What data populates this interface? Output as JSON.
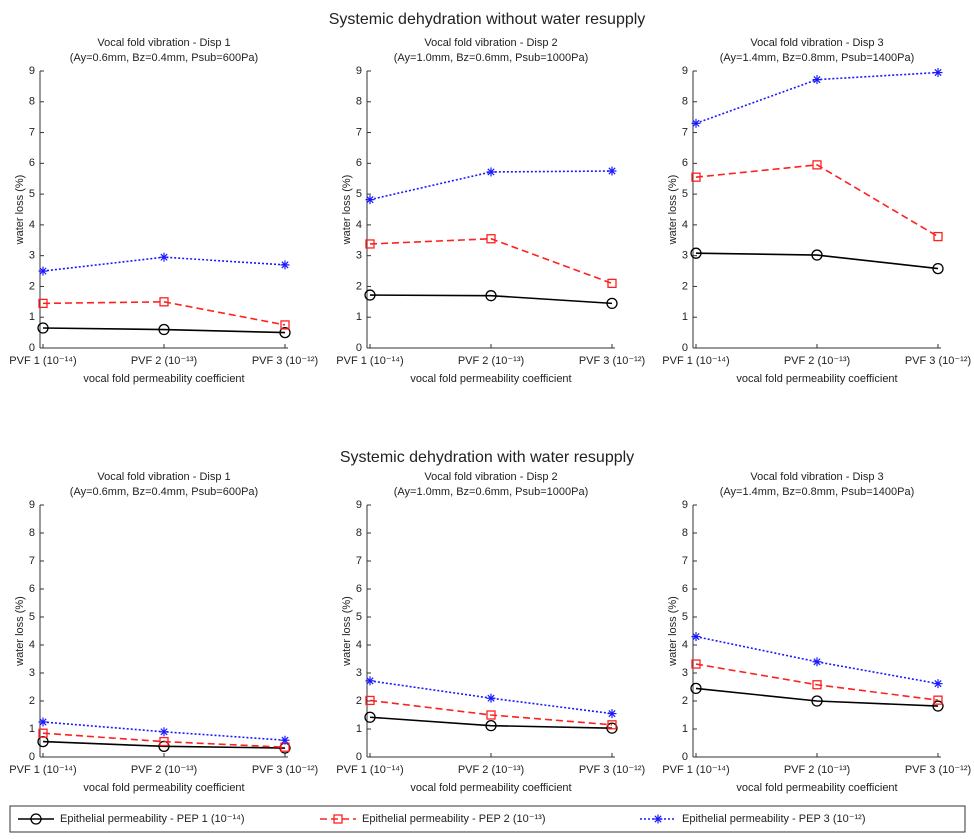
{
  "section_titles": [
    "Systemic dehydration without water resupply",
    "Systemic dehydration with water resupply"
  ],
  "chart_data": [
    {
      "type": "line",
      "title": "Vocal fold vibration - Disp 1",
      "subtitle": "(Ay=0.6mm, Bz=0.4mm, Psub=600Pa)",
      "x_label": "vocal fold permeability coefficient",
      "y_label": "water loss (%)",
      "categories": [
        "PVF 1 (10⁻¹⁴)",
        "PVF 2 (10⁻¹³)",
        "PVF 3 (10⁻¹²)"
      ],
      "ylim": [
        0,
        9
      ],
      "yticks": [
        0,
        1,
        2,
        3,
        4,
        5,
        6,
        7,
        8,
        9
      ],
      "series": [
        {
          "name": "Epithelial permeability - PEP 1 (10⁻¹⁴)",
          "color": "#000000",
          "marker": "circle",
          "dash": "solid",
          "values": [
            0.65,
            0.6,
            0.5
          ]
        },
        {
          "name": "Epithelial permeability - PEP 2 (10⁻¹³)",
          "color": "#ff2020",
          "marker": "square",
          "dash": "dashed",
          "values": [
            1.45,
            1.5,
            0.75
          ]
        },
        {
          "name": "Epithelial permeability - PEP 3 (10⁻¹²)",
          "color": "#1a1aff",
          "marker": "asterisk",
          "dash": "dotted",
          "values": [
            2.5,
            2.95,
            2.7
          ]
        }
      ]
    },
    {
      "type": "line",
      "title": "Vocal fold vibration - Disp 2",
      "subtitle": "(Ay=1.0mm, Bz=0.6mm, Psub=1000Pa)",
      "x_label": "vocal fold permeability coefficient",
      "y_label": "water loss (%)",
      "categories": [
        "PVF 1 (10⁻¹⁴)",
        "PVF 2 (10⁻¹³)",
        "PVF 3 (10⁻¹²)"
      ],
      "ylim": [
        0,
        9
      ],
      "yticks": [
        0,
        1,
        2,
        3,
        4,
        5,
        6,
        7,
        8,
        9
      ],
      "series": [
        {
          "name": "Epithelial permeability - PEP 1 (10⁻¹⁴)",
          "color": "#000000",
          "marker": "circle",
          "dash": "solid",
          "values": [
            1.72,
            1.7,
            1.45
          ]
        },
        {
          "name": "Epithelial permeability - PEP 2 (10⁻¹³)",
          "color": "#ff2020",
          "marker": "square",
          "dash": "dashed",
          "values": [
            3.38,
            3.55,
            2.1
          ]
        },
        {
          "name": "Epithelial permeability - PEP 3 (10⁻¹²)",
          "color": "#1a1aff",
          "marker": "asterisk",
          "dash": "dotted",
          "values": [
            4.82,
            5.72,
            5.75
          ]
        }
      ]
    },
    {
      "type": "line",
      "title": "Vocal fold vibration - Disp 3",
      "subtitle": "(Ay=1.4mm, Bz=0.8mm, Psub=1400Pa)",
      "x_label": "vocal fold permeability coefficient",
      "y_label": "water loss (%)",
      "categories": [
        "PVF 1 (10⁻¹⁴)",
        "PVF 2 (10⁻¹³)",
        "PVF 3 (10⁻¹²)"
      ],
      "ylim": [
        0,
        9
      ],
      "yticks": [
        0,
        1,
        2,
        3,
        4,
        5,
        6,
        7,
        8,
        9
      ],
      "series": [
        {
          "name": "Epithelial permeability - PEP 1 (10⁻¹⁴)",
          "color": "#000000",
          "marker": "circle",
          "dash": "solid",
          "values": [
            3.08,
            3.02,
            2.58
          ]
        },
        {
          "name": "Epithelial permeability - PEP 2 (10⁻¹³)",
          "color": "#ff2020",
          "marker": "square",
          "dash": "dashed",
          "values": [
            5.55,
            5.95,
            3.62
          ]
        },
        {
          "name": "Epithelial permeability - PEP 3 (10⁻¹²)",
          "color": "#1a1aff",
          "marker": "asterisk",
          "dash": "dotted",
          "values": [
            7.3,
            8.72,
            8.95
          ]
        }
      ]
    },
    {
      "type": "line",
      "title": "Vocal fold vibration - Disp 1",
      "subtitle": "(Ay=0.6mm, Bz=0.4mm, Psub=600Pa)",
      "x_label": "vocal fold permeability coefficient",
      "y_label": "water loss (%)",
      "categories": [
        "PVF 1 (10⁻¹⁴)",
        "PVF 2 (10⁻¹³)",
        "PVF 3 (10⁻¹²)"
      ],
      "ylim": [
        0,
        9
      ],
      "yticks": [
        0,
        1,
        2,
        3,
        4,
        5,
        6,
        7,
        8,
        9
      ],
      "series": [
        {
          "name": "Epithelial permeability - PEP 1 (10⁻¹⁴)",
          "color": "#000000",
          "marker": "circle",
          "dash": "solid",
          "values": [
            0.55,
            0.38,
            0.32
          ]
        },
        {
          "name": "Epithelial permeability - PEP 2 (10⁻¹³)",
          "color": "#ff2020",
          "marker": "square",
          "dash": "dashed",
          "values": [
            0.85,
            0.55,
            0.35
          ]
        },
        {
          "name": "Epithelial permeability - PEP 3 (10⁻¹²)",
          "color": "#1a1aff",
          "marker": "asterisk",
          "dash": "dotted",
          "values": [
            1.25,
            0.9,
            0.6
          ]
        }
      ]
    },
    {
      "type": "line",
      "title": "Vocal fold vibration - Disp 2",
      "subtitle": "(Ay=1.0mm, Bz=0.6mm, Psub=1000Pa)",
      "x_label": "vocal fold permeability coefficient",
      "y_label": "water loss (%)",
      "categories": [
        "PVF 1 (10⁻¹⁴)",
        "PVF 2 (10⁻¹³)",
        "PVF 3 (10⁻¹²)"
      ],
      "ylim": [
        0,
        9
      ],
      "yticks": [
        0,
        1,
        2,
        3,
        4,
        5,
        6,
        7,
        8,
        9
      ],
      "series": [
        {
          "name": "Epithelial permeability - PEP 1 (10⁻¹⁴)",
          "color": "#000000",
          "marker": "circle",
          "dash": "solid",
          "values": [
            1.42,
            1.12,
            1.03
          ]
        },
        {
          "name": "Epithelial permeability - PEP 2 (10⁻¹³)",
          "color": "#ff2020",
          "marker": "square",
          "dash": "dashed",
          "values": [
            2.02,
            1.5,
            1.15
          ]
        },
        {
          "name": "Epithelial permeability - PEP 3 (10⁻¹²)",
          "color": "#1a1aff",
          "marker": "asterisk",
          "dash": "dotted",
          "values": [
            2.72,
            2.1,
            1.55
          ]
        }
      ]
    },
    {
      "type": "line",
      "title": "Vocal fold vibration - Disp 3",
      "subtitle": "(Ay=1.4mm, Bz=0.8mm, Psub=1400Pa)",
      "x_label": "vocal fold permeability coefficient",
      "y_label": "water loss (%)",
      "categories": [
        "PVF 1 (10⁻¹⁴)",
        "PVF 2 (10⁻¹³)",
        "PVF 3 (10⁻¹²)"
      ],
      "ylim": [
        0,
        9
      ],
      "yticks": [
        0,
        1,
        2,
        3,
        4,
        5,
        6,
        7,
        8,
        9
      ],
      "series": [
        {
          "name": "Epithelial permeability - PEP 1 (10⁻¹⁴)",
          "color": "#000000",
          "marker": "circle",
          "dash": "solid",
          "values": [
            2.45,
            2.0,
            1.82
          ]
        },
        {
          "name": "Epithelial permeability - PEP 2 (10⁻¹³)",
          "color": "#ff2020",
          "marker": "square",
          "dash": "dashed",
          "values": [
            3.32,
            2.58,
            2.03
          ]
        },
        {
          "name": "Epithelial permeability - PEP 3 (10⁻¹²)",
          "color": "#1a1aff",
          "marker": "asterisk",
          "dash": "dotted",
          "values": [
            4.3,
            3.4,
            2.62
          ]
        }
      ]
    }
  ]
}
